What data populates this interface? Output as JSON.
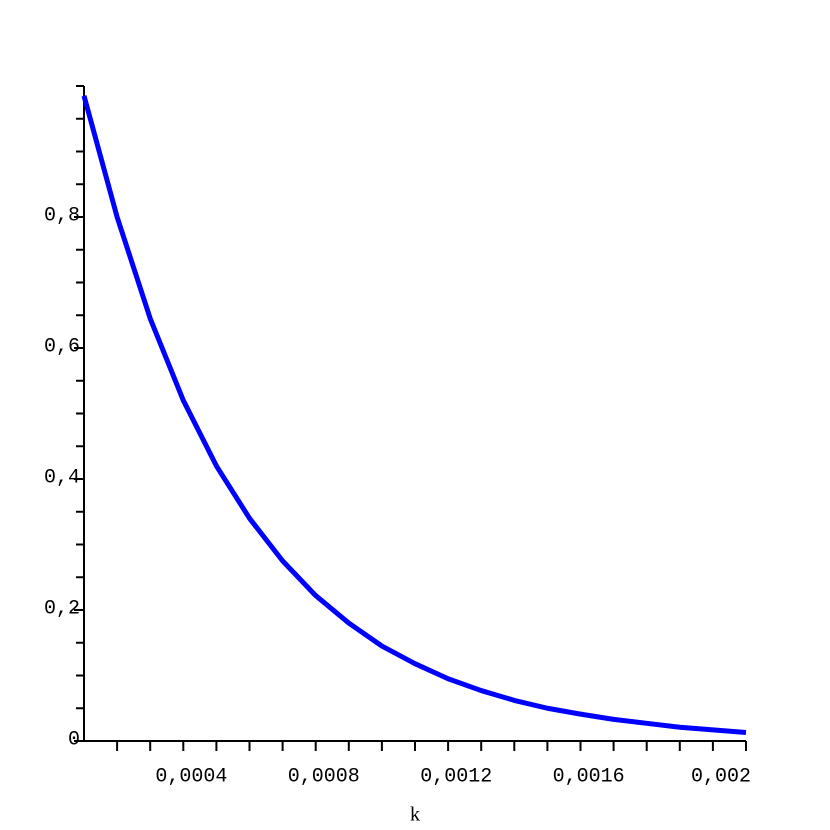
{
  "chart_data": {
    "type": "line",
    "x_label": "k",
    "x": [
      0,
      0.0001,
      0.0002,
      0.0003,
      0.0004,
      0.0005,
      0.0006,
      0.0007,
      0.0008,
      0.0009,
      0.001,
      0.0011,
      0.0012,
      0.0013,
      0.0014,
      0.0015,
      0.0016,
      0.0017,
      0.0018,
      0.0019,
      0.002
    ],
    "series": [
      {
        "color": "#0000ff",
        "values": [
          0.985,
          0.8,
          0.645,
          0.52,
          0.42,
          0.34,
          0.275,
          0.222,
          0.18,
          0.145,
          0.118,
          0.095,
          0.077,
          0.062,
          0.05,
          0.041,
          0.033,
          0.027,
          0.021,
          0.017,
          0.013
        ]
      }
    ],
    "xlim": [
      0,
      0.002
    ],
    "ylim": [
      0,
      1
    ],
    "xticks": [
      {
        "value": 0.0004,
        "label": "0,0004"
      },
      {
        "value": 0.0008,
        "label": "0,0008"
      },
      {
        "value": 0.0012,
        "label": "0,0012"
      },
      {
        "value": 0.0016,
        "label": "0,0016"
      },
      {
        "value": 0.002,
        "label": "0,002"
      }
    ],
    "yticks": [
      0,
      {
        "value": 0.2,
        "label": "0,2"
      },
      {
        "value": 0.4,
        "label": "0,4"
      },
      {
        "value": 0.6,
        "label": "0,6"
      },
      {
        "value": 0.8,
        "label": "0,8"
      }
    ],
    "xminorticks": [
      0.0001,
      0.0002,
      0.0003,
      0.0005,
      0.0006,
      0.0007,
      0.0009,
      0.001,
      0.0011,
      0.0013,
      0.0014,
      0.0015,
      0.0017,
      0.0018,
      0.0019
    ],
    "yminorticks": [
      0.05,
      0.1,
      0.15,
      0.25,
      0.3,
      0.35,
      0.45,
      0.5,
      0.55,
      0.65,
      0.7,
      0.75,
      0.85,
      0.9,
      0.95,
      1
    ]
  }
}
